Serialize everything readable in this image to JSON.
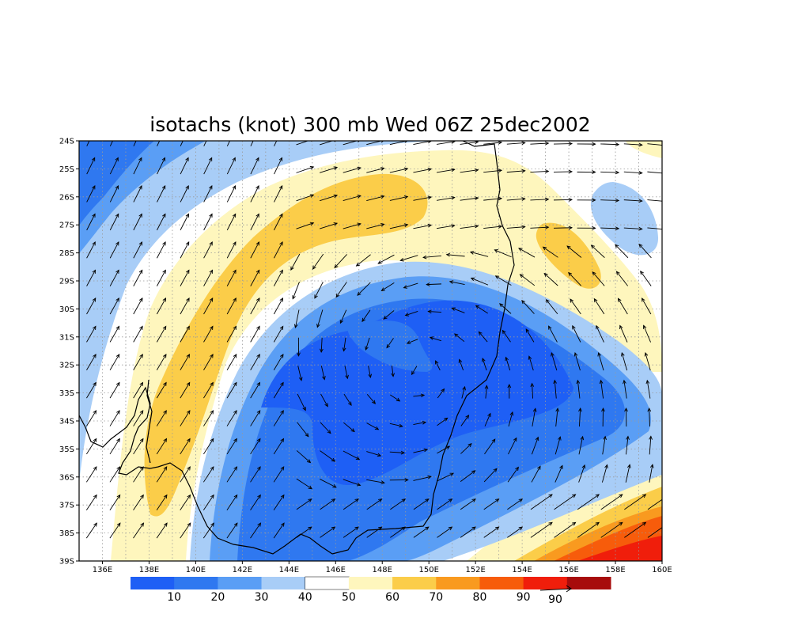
{
  "title": "isotachs (knot) 300 mb Wed 06Z 25dec2002",
  "map": {
    "lon_range": [
      135,
      160
    ],
    "lat_range": [
      -39,
      -24
    ],
    "lon_ticks": [
      "136E",
      "138E",
      "140E",
      "142E",
      "144E",
      "146E",
      "148E",
      "150E",
      "152E",
      "154E",
      "156E",
      "158E",
      "160E"
    ],
    "lat_ticks": [
      "24S",
      "25S",
      "26S",
      "27S",
      "28S",
      "29S",
      "30S",
      "31S",
      "32S",
      "33S",
      "34S",
      "35S",
      "36S",
      "37S",
      "38S",
      "39S"
    ],
    "grid": "dotted"
  },
  "colorbar": {
    "colors": [
      "#1e5ff5",
      "#2f78f0",
      "#5a9ef5",
      "#a8cdf7",
      "#ffffff",
      "#fef6bd",
      "#fbcd49",
      "#f99a1f",
      "#f75c0b",
      "#f01e0b",
      "#a70c0c"
    ],
    "labels": [
      "10",
      "20",
      "30",
      "40",
      "50",
      "60",
      "70",
      "80",
      "90"
    ],
    "vector_reference": "90"
  },
  "chart_data": {
    "type": "heatmap",
    "variable": "isotachs (knot)",
    "level": "300 mb",
    "valid_time": "Wed 06Z 25dec2002",
    "units": "knot",
    "contour_levels": [
      10,
      20,
      30,
      40,
      50,
      60,
      70,
      80,
      90
    ],
    "features": [
      {
        "kind": "jet_max",
        "speed_range": [
          60,
          70
        ],
        "lon": 146,
        "lat": -26.5
      },
      {
        "kind": "jet_max",
        "speed_range": [
          60,
          70
        ],
        "lon": 138.5,
        "lat": -35.5
      },
      {
        "kind": "jet_max",
        "speed_range": [
          60,
          70
        ],
        "lon": 154.5,
        "lat": -28.5
      },
      {
        "kind": "wind_min",
        "speed_range": [
          0,
          10
        ],
        "lon": 147,
        "lat": -34
      },
      {
        "kind": "wind_max",
        "speed_range": [
          80,
          90
        ],
        "lon": 159,
        "lat": -38.5
      }
    ]
  }
}
